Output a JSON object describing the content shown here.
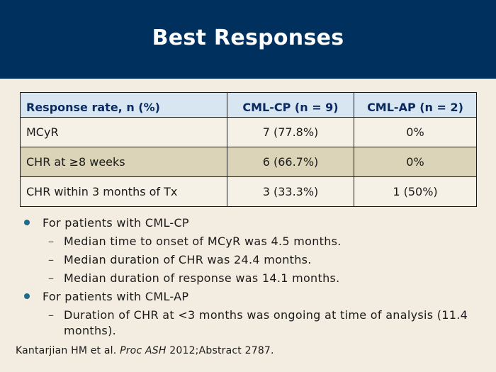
{
  "slide": {
    "title": "Best Responses"
  },
  "table": {
    "headers": [
      "Response rate, n (%)",
      "CML-CP (n = 9)",
      "CML-AP (n = 2)"
    ],
    "rows": [
      {
        "label": "MCyR",
        "cp": "7 (77.8%)",
        "ap": "0%"
      },
      {
        "label": "CHR at ≥8 weeks",
        "cp": "6 (66.7%)",
        "ap": "0%"
      },
      {
        "label": "CHR within 3 months of Tx",
        "cp": "3 (33.3%)",
        "ap": "1 (50%)"
      }
    ]
  },
  "bullets": [
    {
      "text": "For patients with CML-CP",
      "subs": [
        "Median time to onset of MCyR was 4.5 months.",
        "Median duration of CHR was 24.4 months.",
        "Median duration of response was 14.1 months."
      ]
    },
    {
      "text": "For patients with CML-AP",
      "subs": [
        "Duration of CHR at <3 months was ongoing at time of analysis (11.4 months)."
      ]
    }
  ],
  "citation": {
    "authors": "Kantarjian HM et al. ",
    "journal": "Proc ASH",
    "rest": " 2012;Abstract 2787."
  },
  "colors": {
    "title_bar": "#00305e",
    "background": "#f2ede0",
    "header_row": "#d8e6f2",
    "shaded_row": "#dcd4b8",
    "bullet": "#1e6b8c"
  }
}
